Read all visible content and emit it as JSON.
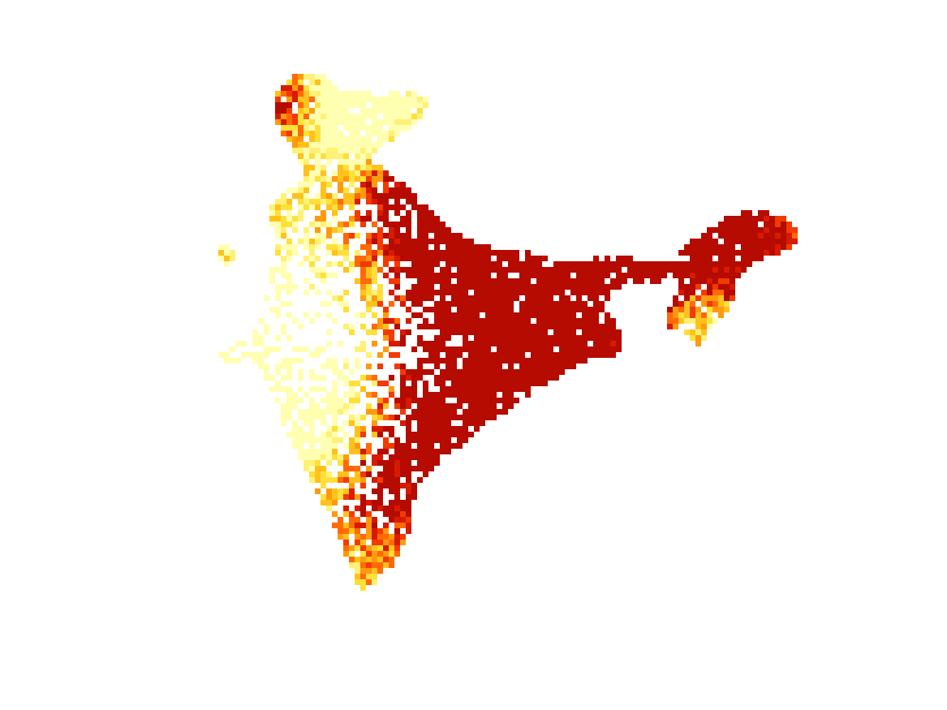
{
  "map": {
    "type": "raster-heatmap",
    "region": "India",
    "legend": "none",
    "axes": "hidden",
    "colormap": [
      "#FFFFB2",
      "#FFF176",
      "#FFE03A",
      "#FFC21C",
      "#FF9A0E",
      "#FF6A06",
      "#F23A02",
      "#D71A00",
      "#B50B00"
    ],
    "background": "#ffffff"
  }
}
